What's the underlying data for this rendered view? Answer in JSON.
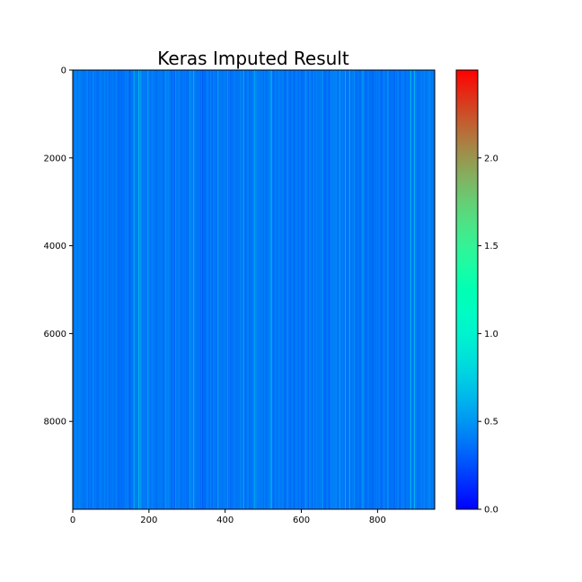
{
  "chart_data": {
    "type": "heatmap",
    "title": "Keras Imputed Result",
    "xlabel": "",
    "ylabel": "",
    "x_range": [
      0,
      950
    ],
    "y_range": [
      0,
      10000
    ],
    "y_inverted": true,
    "x_ticks": [
      0,
      200,
      400,
      600,
      800
    ],
    "y_ticks": [
      0,
      2000,
      4000,
      6000,
      8000
    ],
    "colormap": "rainbow",
    "colorbar": {
      "range": [
        0,
        2.5
      ],
      "ticks": [
        0.0,
        0.5,
        1.0,
        1.5,
        2.0
      ],
      "tick_labels": [
        "0.0",
        "0.5",
        "1.0",
        "1.5",
        "2.0"
      ]
    },
    "dominant_value_range": [
      0.3,
      0.75
    ],
    "column_profile": {
      "description": "values are approximately constant down each column and vary across columns",
      "typical_value": 0.38,
      "bright_columns": [
        {
          "x": 160,
          "value": 0.65
        },
        {
          "x": 172,
          "value": 0.72
        },
        {
          "x": 178,
          "value": 0.66
        },
        {
          "x": 196,
          "value": 0.55
        },
        {
          "x": 242,
          "value": 0.58
        },
        {
          "x": 268,
          "value": 0.55
        },
        {
          "x": 305,
          "value": 0.6
        },
        {
          "x": 315,
          "value": 0.62
        },
        {
          "x": 380,
          "value": 0.55
        },
        {
          "x": 405,
          "value": 0.55
        },
        {
          "x": 448,
          "value": 0.6
        },
        {
          "x": 476,
          "value": 0.58
        },
        {
          "x": 520,
          "value": 0.75
        },
        {
          "x": 562,
          "value": 0.55
        },
        {
          "x": 610,
          "value": 0.55
        },
        {
          "x": 655,
          "value": 0.62
        },
        {
          "x": 700,
          "value": 0.58
        },
        {
          "x": 714,
          "value": 0.7
        },
        {
          "x": 726,
          "value": 0.66
        },
        {
          "x": 760,
          "value": 0.55
        },
        {
          "x": 826,
          "value": 0.55
        },
        {
          "x": 886,
          "value": 0.72
        },
        {
          "x": 896,
          "value": 0.66
        }
      ],
      "dark_columns": [
        {
          "x": 148,
          "value": 0.26
        },
        {
          "x": 265,
          "value": 0.22
        },
        {
          "x": 340,
          "value": 0.27
        },
        {
          "x": 600,
          "value": 0.27
        },
        {
          "x": 658,
          "value": 0.26
        },
        {
          "x": 742,
          "value": 0.28
        }
      ]
    }
  }
}
